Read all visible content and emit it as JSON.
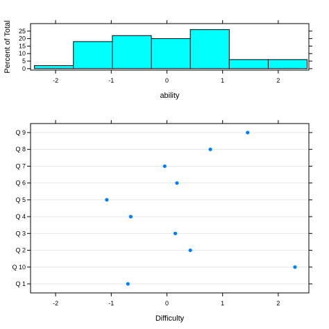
{
  "chart_data": [
    {
      "type": "bar",
      "subtype": "histogram",
      "xlabel": "ability",
      "ylabel": "Percent of Total",
      "xlim": [
        -2.45,
        2.55
      ],
      "ylim": [
        -1,
        30
      ],
      "xticks": [
        -2,
        -1,
        0,
        1,
        2
      ],
      "xtick_labels": [
        "-2",
        "-1",
        "0",
        "1",
        "2"
      ],
      "yticks": [
        0,
        5,
        10,
        15,
        20,
        25
      ],
      "ytick_labels": [
        "0",
        "5",
        "10",
        "15",
        "20",
        "25"
      ],
      "bins": [
        {
          "x0": -2.38,
          "x1": -1.68,
          "value": 2
        },
        {
          "x0": -1.68,
          "x1": -0.98,
          "value": 18
        },
        {
          "x0": -0.98,
          "x1": -0.28,
          "value": 22
        },
        {
          "x0": -0.28,
          "x1": 0.42,
          "value": 20
        },
        {
          "x0": 0.42,
          "x1": 1.12,
          "value": 26
        },
        {
          "x0": 1.12,
          "x1": 1.82,
          "value": 6
        },
        {
          "x0": 1.82,
          "x1": 2.52,
          "value": 6
        }
      ],
      "colors": {
        "fill": "#00ffff",
        "stroke": "#000000"
      },
      "grid": false
    },
    {
      "type": "scatter",
      "subtype": "dotplot",
      "xlabel": "Difficulty",
      "ylabel": "",
      "xlim": [
        -2.45,
        2.55
      ],
      "xticks": [
        -2,
        -1,
        0,
        1,
        2
      ],
      "xtick_labels": [
        "-2",
        "-1",
        "0",
        "1",
        "2"
      ],
      "categories": [
        "Q 1",
        "Q 10",
        "Q 2",
        "Q 3",
        "Q 4",
        "Q 5",
        "Q 6",
        "Q 7",
        "Q 8",
        "Q 9"
      ],
      "values": [
        -0.7,
        2.3,
        0.42,
        0.15,
        -0.65,
        -1.08,
        0.18,
        -0.04,
        0.78,
        1.45
      ],
      "colors": {
        "point": "#0080ff",
        "gridline": "#e6e6e6"
      },
      "grid": true
    }
  ]
}
